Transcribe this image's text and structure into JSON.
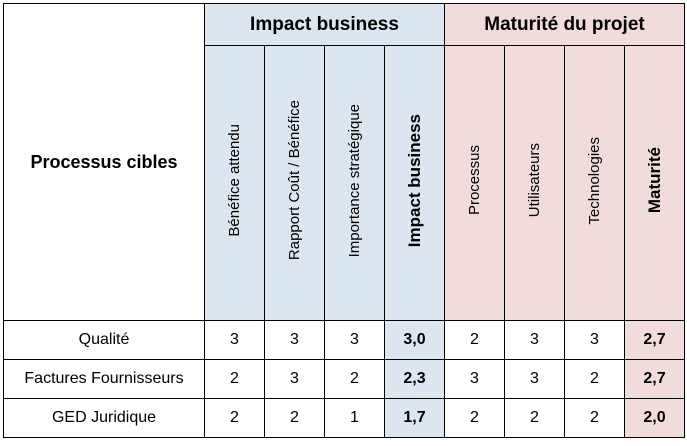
{
  "header": {
    "row_label": "Processus cibles",
    "groups": [
      {
        "label": "Impact business",
        "color": "#dce6f1"
      },
      {
        "label": "Maturité du projet",
        "color": "#f2dcdb"
      }
    ],
    "impact_columns": [
      "Bénéfice attendu",
      "Rapport Coût / Bénéfice",
      "Importance stratégique",
      "Impact business"
    ],
    "maturity_columns": [
      "Processus",
      "Utilisateurs",
      "Technologies",
      "Maturité"
    ]
  },
  "rows": [
    {
      "name": "Qualité",
      "impact": [
        "3",
        "3",
        "3",
        "3,0"
      ],
      "maturity": [
        "2",
        "3",
        "3",
        "2,7"
      ]
    },
    {
      "name": "Factures Fournisseurs",
      "impact": [
        "2",
        "3",
        "2",
        "2,3"
      ],
      "maturity": [
        "3",
        "3",
        "2",
        "2,7"
      ]
    },
    {
      "name": "GED Juridique",
      "impact": [
        "2",
        "2",
        "1",
        "1,7"
      ],
      "maturity": [
        "2",
        "2",
        "2",
        "2,0"
      ]
    }
  ]
}
